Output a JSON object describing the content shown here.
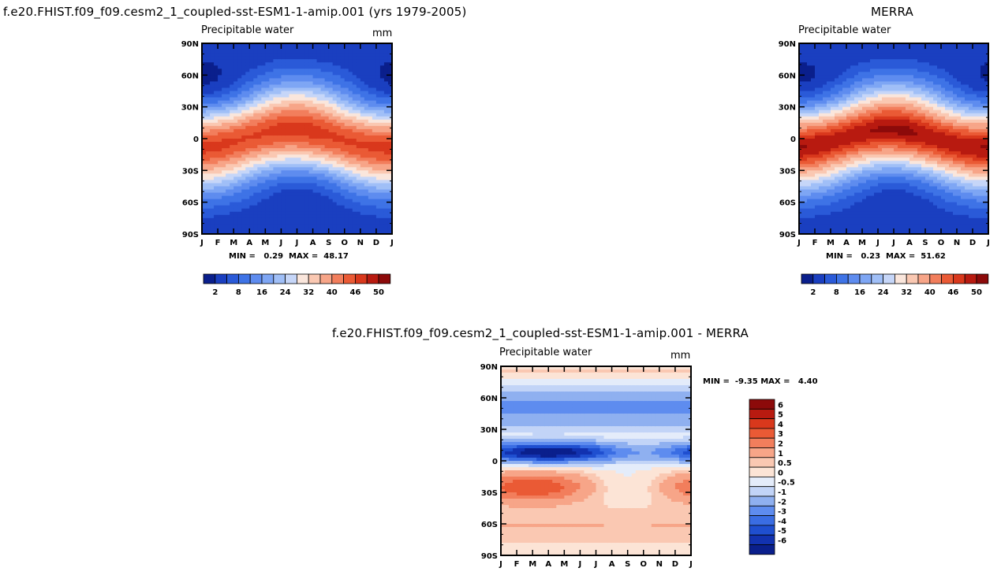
{
  "chart_data": [
    {
      "type": "heatmap",
      "panel": "model",
      "title": "f.e20.FHIST.f09_f09.cesm2_1_coupled-sst-ESM1-1-amip.001 (yrs 1979-2005)",
      "variable": "Precipitable water",
      "units": "mm",
      "x_labels": [
        "J",
        "F",
        "M",
        "A",
        "M",
        "J",
        "J",
        "A",
        "S",
        "O",
        "N",
        "D",
        "J"
      ],
      "y_labels": [
        "90N",
        "60N",
        "30N",
        "0",
        "30S",
        "60S",
        "90S"
      ],
      "min_label": "MIN =",
      "min_value": "0.29",
      "max_label": "MAX =",
      "max_value": "48.17",
      "colorbar_ticks": [
        "2",
        "8",
        "16",
        "24",
        "32",
        "40",
        "46",
        "50"
      ],
      "colorbar_colors": [
        "#0a1f8c",
        "#1a3fc0",
        "#2a5ad8",
        "#3e73e6",
        "#5e8cef",
        "#7ea6f4",
        "#a0bff7",
        "#c6d6f8",
        "#fae6dc",
        "#fac8b2",
        "#f7a588",
        "#f27e5c",
        "#ea5a35",
        "#d9381c",
        "#b81a10",
        "#8c0a0a"
      ],
      "axis_ranges": {
        "x": [
          "Jan",
          "Jan"
        ],
        "y": [
          -90,
          90
        ]
      }
    },
    {
      "type": "heatmap",
      "panel": "observations",
      "title": "MERRA",
      "variable": "Precipitable water",
      "min_label": "MIN =",
      "min_value": "0.23",
      "max_label": "MAX =",
      "max_value": "51.62",
      "x_labels": [
        "J",
        "F",
        "M",
        "A",
        "M",
        "J",
        "J",
        "A",
        "S",
        "O",
        "N",
        "D",
        "J"
      ],
      "y_labels": [
        "90N",
        "60N",
        "30N",
        "0",
        "30S",
        "60S",
        "90S"
      ],
      "colorbar_ticks": [
        "2",
        "8",
        "16",
        "24",
        "32",
        "40",
        "46",
        "50"
      ],
      "colorbar_colors": [
        "#0a1f8c",
        "#1a3fc0",
        "#2a5ad8",
        "#3e73e6",
        "#5e8cef",
        "#7ea6f4",
        "#a0bff7",
        "#c6d6f8",
        "#fae6dc",
        "#fac8b2",
        "#f7a588",
        "#f27e5c",
        "#ea5a35",
        "#d9381c",
        "#b81a10",
        "#8c0a0a"
      ]
    },
    {
      "type": "heatmap",
      "panel": "difference",
      "title": "f.e20.FHIST.f09_f09.cesm2_1_coupled-sst-ESM1-1-amip.001 - MERRA",
      "variable": "Precipitable water",
      "units": "mm",
      "min_label": "MIN =",
      "min_value": "-9.35",
      "max_label": "MAX =",
      "max_value": "4.40",
      "x_labels": [
        "J",
        "F",
        "M",
        "A",
        "M",
        "J",
        "J",
        "A",
        "S",
        "O",
        "N",
        "D",
        "J"
      ],
      "y_labels": [
        "90N",
        "60N",
        "30N",
        "0",
        "30S",
        "60S",
        "90S"
      ],
      "colorbar_ticks": [
        "6",
        "5",
        "4",
        "3",
        "2",
        "1",
        "0.5",
        "0",
        "-0.5",
        "-1",
        "-2",
        "-3",
        "-4",
        "-5",
        "-6"
      ],
      "colorbar_colors": [
        "#8c0a0a",
        "#b81a10",
        "#d9381c",
        "#ea5a35",
        "#f27e5c",
        "#f7a588",
        "#fac8b2",
        "#fce4d6",
        "#e4ecfa",
        "#c2d4f7",
        "#8fb0f0",
        "#5e8cef",
        "#3a6de3",
        "#1f4fd0",
        "#1232b0",
        "#0a1f8c"
      ]
    }
  ]
}
